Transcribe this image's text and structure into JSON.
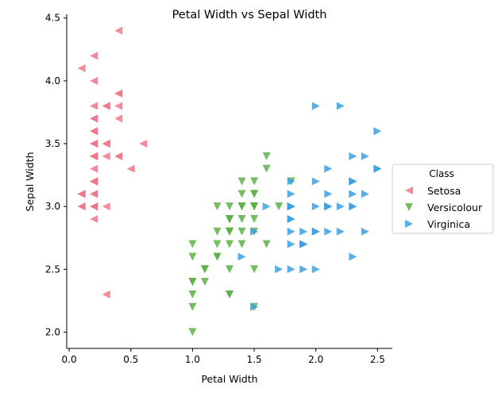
{
  "chart_data": {
    "type": "scatter",
    "title": "Petal Width vs Sepal Width",
    "xlabel": "Petal Width",
    "ylabel": "Sepal Width",
    "xlim": [
      -0.02,
      2.62
    ],
    "ylim": [
      1.87,
      4.53
    ],
    "x_ticks": [
      0.0,
      0.5,
      1.0,
      1.5,
      2.0,
      2.5
    ],
    "y_ticks": [
      2.0,
      2.5,
      3.0,
      3.5,
      4.0,
      4.5
    ],
    "x_tick_labels": [
      "0.0",
      "0.5",
      "1.0",
      "1.5",
      "2.0",
      "2.5"
    ],
    "y_tick_labels": [
      "2.0",
      "2.5",
      "3.0",
      "3.5",
      "4.0",
      "4.5"
    ],
    "grid": false,
    "legend": {
      "title": "Class",
      "placement": "right, outside plot area"
    },
    "series": [
      {
        "name": "Setosa",
        "marker": "triangle-left",
        "color": "#f07688",
        "points": [
          [
            0.2,
            3.5
          ],
          [
            0.2,
            3.0
          ],
          [
            0.2,
            3.2
          ],
          [
            0.2,
            3.1
          ],
          [
            0.2,
            3.6
          ],
          [
            0.4,
            3.9
          ],
          [
            0.3,
            3.4
          ],
          [
            0.2,
            3.4
          ],
          [
            0.2,
            2.9
          ],
          [
            0.1,
            3.1
          ],
          [
            0.2,
            3.7
          ],
          [
            0.2,
            3.4
          ],
          [
            0.1,
            3.0
          ],
          [
            0.1,
            3.0
          ],
          [
            0.2,
            4.0
          ],
          [
            0.4,
            4.4
          ],
          [
            0.4,
            3.9
          ],
          [
            0.3,
            3.5
          ],
          [
            0.3,
            3.8
          ],
          [
            0.3,
            3.8
          ],
          [
            0.2,
            3.4
          ],
          [
            0.4,
            3.7
          ],
          [
            0.2,
            3.6
          ],
          [
            0.5,
            3.3
          ],
          [
            0.2,
            3.4
          ],
          [
            0.2,
            3.0
          ],
          [
            0.4,
            3.4
          ],
          [
            0.2,
            3.5
          ],
          [
            0.2,
            3.4
          ],
          [
            0.2,
            3.2
          ],
          [
            0.2,
            3.1
          ],
          [
            0.4,
            3.4
          ],
          [
            0.1,
            4.1
          ],
          [
            0.2,
            4.2
          ],
          [
            0.1,
            3.1
          ],
          [
            0.2,
            3.2
          ],
          [
            0.2,
            3.5
          ],
          [
            0.1,
            3.1
          ],
          [
            0.2,
            3.0
          ],
          [
            0.2,
            3.4
          ],
          [
            0.3,
            3.5
          ],
          [
            0.3,
            2.3
          ],
          [
            0.2,
            3.2
          ],
          [
            0.6,
            3.5
          ],
          [
            0.4,
            3.8
          ],
          [
            0.3,
            3.0
          ],
          [
            0.2,
            3.8
          ],
          [
            0.2,
            3.2
          ],
          [
            0.2,
            3.7
          ],
          [
            0.2,
            3.3
          ]
        ]
      },
      {
        "name": "Versicolour",
        "marker": "triangle-down",
        "color": "#5db145",
        "points": [
          [
            1.4,
            3.2
          ],
          [
            1.5,
            3.2
          ],
          [
            1.5,
            3.1
          ],
          [
            1.3,
            2.3
          ],
          [
            1.5,
            2.8
          ],
          [
            1.3,
            2.8
          ],
          [
            1.6,
            3.3
          ],
          [
            1.0,
            2.4
          ],
          [
            1.3,
            2.9
          ],
          [
            1.4,
            2.7
          ],
          [
            1.0,
            2.0
          ],
          [
            1.5,
            3.0
          ],
          [
            1.0,
            2.2
          ],
          [
            1.4,
            2.9
          ],
          [
            1.3,
            2.9
          ],
          [
            1.4,
            3.1
          ],
          [
            1.5,
            3.0
          ],
          [
            1.0,
            2.7
          ],
          [
            1.5,
            2.2
          ],
          [
            1.1,
            2.5
          ],
          [
            1.8,
            3.2
          ],
          [
            1.3,
            2.8
          ],
          [
            1.5,
            2.5
          ],
          [
            1.2,
            2.8
          ],
          [
            1.3,
            2.9
          ],
          [
            1.4,
            3.0
          ],
          [
            1.4,
            2.8
          ],
          [
            1.7,
            3.0
          ],
          [
            1.5,
            2.9
          ],
          [
            1.0,
            2.6
          ],
          [
            1.1,
            2.4
          ],
          [
            1.0,
            2.4
          ],
          [
            1.2,
            2.7
          ],
          [
            1.6,
            2.7
          ],
          [
            1.5,
            3.0
          ],
          [
            1.6,
            3.4
          ],
          [
            1.5,
            3.1
          ],
          [
            1.3,
            2.3
          ],
          [
            1.3,
            3.0
          ],
          [
            1.3,
            2.5
          ],
          [
            1.2,
            2.6
          ],
          [
            1.4,
            3.0
          ],
          [
            1.2,
            2.6
          ],
          [
            1.0,
            2.3
          ],
          [
            1.3,
            2.7
          ],
          [
            1.2,
            3.0
          ],
          [
            1.3,
            2.9
          ],
          [
            1.3,
            2.9
          ],
          [
            1.1,
            2.5
          ],
          [
            1.3,
            2.8
          ]
        ]
      },
      {
        "name": "Virginica",
        "marker": "triangle-right",
        "color": "#3ba1e3",
        "points": [
          [
            2.5,
            3.3
          ],
          [
            1.9,
            2.7
          ],
          [
            2.1,
            3.0
          ],
          [
            1.8,
            2.9
          ],
          [
            2.2,
            3.0
          ],
          [
            2.1,
            3.0
          ],
          [
            1.7,
            2.5
          ],
          [
            1.8,
            2.9
          ],
          [
            1.8,
            2.5
          ],
          [
            2.5,
            3.6
          ],
          [
            2.0,
            3.2
          ],
          [
            1.9,
            2.7
          ],
          [
            2.1,
            3.0
          ],
          [
            2.0,
            2.5
          ],
          [
            2.4,
            2.8
          ],
          [
            2.3,
            3.2
          ],
          [
            1.8,
            3.0
          ],
          [
            2.2,
            3.8
          ],
          [
            2.3,
            2.6
          ],
          [
            1.5,
            2.2
          ],
          [
            2.3,
            3.2
          ],
          [
            2.0,
            2.8
          ],
          [
            2.0,
            2.8
          ],
          [
            1.8,
            2.7
          ],
          [
            2.1,
            3.3
          ],
          [
            1.8,
            3.2
          ],
          [
            1.8,
            2.8
          ],
          [
            1.8,
            3.0
          ],
          [
            2.1,
            2.8
          ],
          [
            1.6,
            3.0
          ],
          [
            1.9,
            2.8
          ],
          [
            2.0,
            3.8
          ],
          [
            2.2,
            2.8
          ],
          [
            1.5,
            2.8
          ],
          [
            1.4,
            2.6
          ],
          [
            2.3,
            3.0
          ],
          [
            2.4,
            3.4
          ],
          [
            1.8,
            3.1
          ],
          [
            1.8,
            3.0
          ],
          [
            2.1,
            3.1
          ],
          [
            2.4,
            3.1
          ],
          [
            2.3,
            3.1
          ],
          [
            1.9,
            2.7
          ],
          [
            2.3,
            3.2
          ],
          [
            2.5,
            3.3
          ],
          [
            2.3,
            3.0
          ],
          [
            1.9,
            2.5
          ],
          [
            2.0,
            3.0
          ],
          [
            2.3,
            3.4
          ],
          [
            1.8,
            3.0
          ]
        ]
      }
    ]
  }
}
